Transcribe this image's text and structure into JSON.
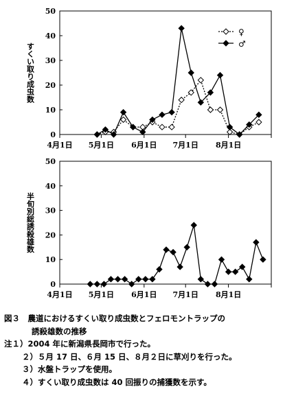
{
  "chart_data": [
    {
      "type": "line",
      "ylabel": "すくい取り成虫数",
      "ylim": [
        0,
        50
      ],
      "yticks": [
        "0",
        "10",
        "20",
        "30",
        "40",
        "50"
      ],
      "xticks": [
        {
          "label": "4月1日",
          "date": "04-01"
        },
        {
          "label": "5月1日",
          "date": "05-01"
        },
        {
          "label": "6月1日",
          "date": "06-01"
        },
        {
          "label": "7月1日",
          "date": "07-01"
        },
        {
          "label": "8月1日",
          "date": "08-01"
        }
      ],
      "legend": "top-right",
      "series": [
        {
          "name": "♀",
          "style": "dotted-open-diamond",
          "points": [
            [
              "04-28",
              0
            ],
            [
              "05-04",
              1
            ],
            [
              "05-10",
              1
            ],
            [
              "05-17",
              6
            ],
            [
              "05-24",
              3
            ],
            [
              "05-31",
              3
            ],
            [
              "06-07",
              5
            ],
            [
              "06-14",
              3
            ],
            [
              "06-21",
              3
            ],
            [
              "06-28",
              14
            ],
            [
              "07-05",
              17
            ],
            [
              "07-12",
              22
            ],
            [
              "07-19",
              10
            ],
            [
              "07-26",
              10
            ],
            [
              "08-02",
              1
            ],
            [
              "08-09",
              0
            ],
            [
              "08-16",
              3
            ],
            [
              "08-23",
              5
            ]
          ]
        },
        {
          "name": "♂",
          "style": "solid-filled-diamond",
          "points": [
            [
              "04-28",
              0
            ],
            [
              "05-04",
              2
            ],
            [
              "05-10",
              0
            ],
            [
              "05-17",
              9
            ],
            [
              "05-24",
              3
            ],
            [
              "05-31",
              1
            ],
            [
              "06-07",
              6
            ],
            [
              "06-14",
              8
            ],
            [
              "06-21",
              9
            ],
            [
              "06-28",
              43
            ],
            [
              "07-05",
              25
            ],
            [
              "07-12",
              13
            ],
            [
              "07-19",
              17
            ],
            [
              "07-26",
              24
            ],
            [
              "08-02",
              3
            ],
            [
              "08-09",
              0
            ],
            [
              "08-16",
              4
            ],
            [
              "08-23",
              8
            ]
          ]
        }
      ]
    },
    {
      "type": "line",
      "ylabel": "半旬別総誘殺雄数",
      "ylim": [
        0,
        50
      ],
      "yticks": [
        "0",
        "10",
        "20",
        "30",
        "40",
        "50"
      ],
      "xticks": [
        {
          "label": "4月1日",
          "date": "04-01"
        },
        {
          "label": "5月1日",
          "date": "05-01"
        },
        {
          "label": "6月1日",
          "date": "06-01"
        },
        {
          "label": "7月1日",
          "date": "07-01"
        },
        {
          "label": "8月1日",
          "date": "08-01"
        }
      ],
      "series": [
        {
          "name": "",
          "style": "solid-filled-diamond",
          "points": [
            [
              "04-23",
              0
            ],
            [
              "04-28",
              0
            ],
            [
              "05-03",
              0
            ],
            [
              "05-08",
              2
            ],
            [
              "05-13",
              2
            ],
            [
              "05-18",
              2
            ],
            [
              "05-23",
              0
            ],
            [
              "05-28",
              2
            ],
            [
              "06-02",
              2
            ],
            [
              "06-07",
              2
            ],
            [
              "06-12",
              6
            ],
            [
              "06-17",
              14
            ],
            [
              "06-22",
              13
            ],
            [
              "06-27",
              7
            ],
            [
              "07-02",
              15
            ],
            [
              "07-07",
              24
            ],
            [
              "07-12",
              2
            ],
            [
              "07-17",
              0
            ],
            [
              "07-22",
              0
            ],
            [
              "07-27",
              10
            ],
            [
              "08-01",
              5
            ],
            [
              "08-06",
              5
            ],
            [
              "08-11",
              7
            ],
            [
              "08-16",
              2
            ],
            [
              "08-21",
              17
            ],
            [
              "08-26",
              10
            ]
          ]
        }
      ]
    }
  ],
  "caption": {
    "title_line1": "図３　農道におけるすくい取り成虫数とフェロモントラップの",
    "title_line2": "誘殺雄数の推移",
    "notes": [
      "注１）2004 年に新潟県長岡市で行った。",
      "２）５月 17 日、６月 15 日、８月２日に草刈りを行った。",
      "３）水盤トラップを使用。",
      "４）すくい取り成虫数は 40 回振りの捕獲数を示す。"
    ]
  }
}
